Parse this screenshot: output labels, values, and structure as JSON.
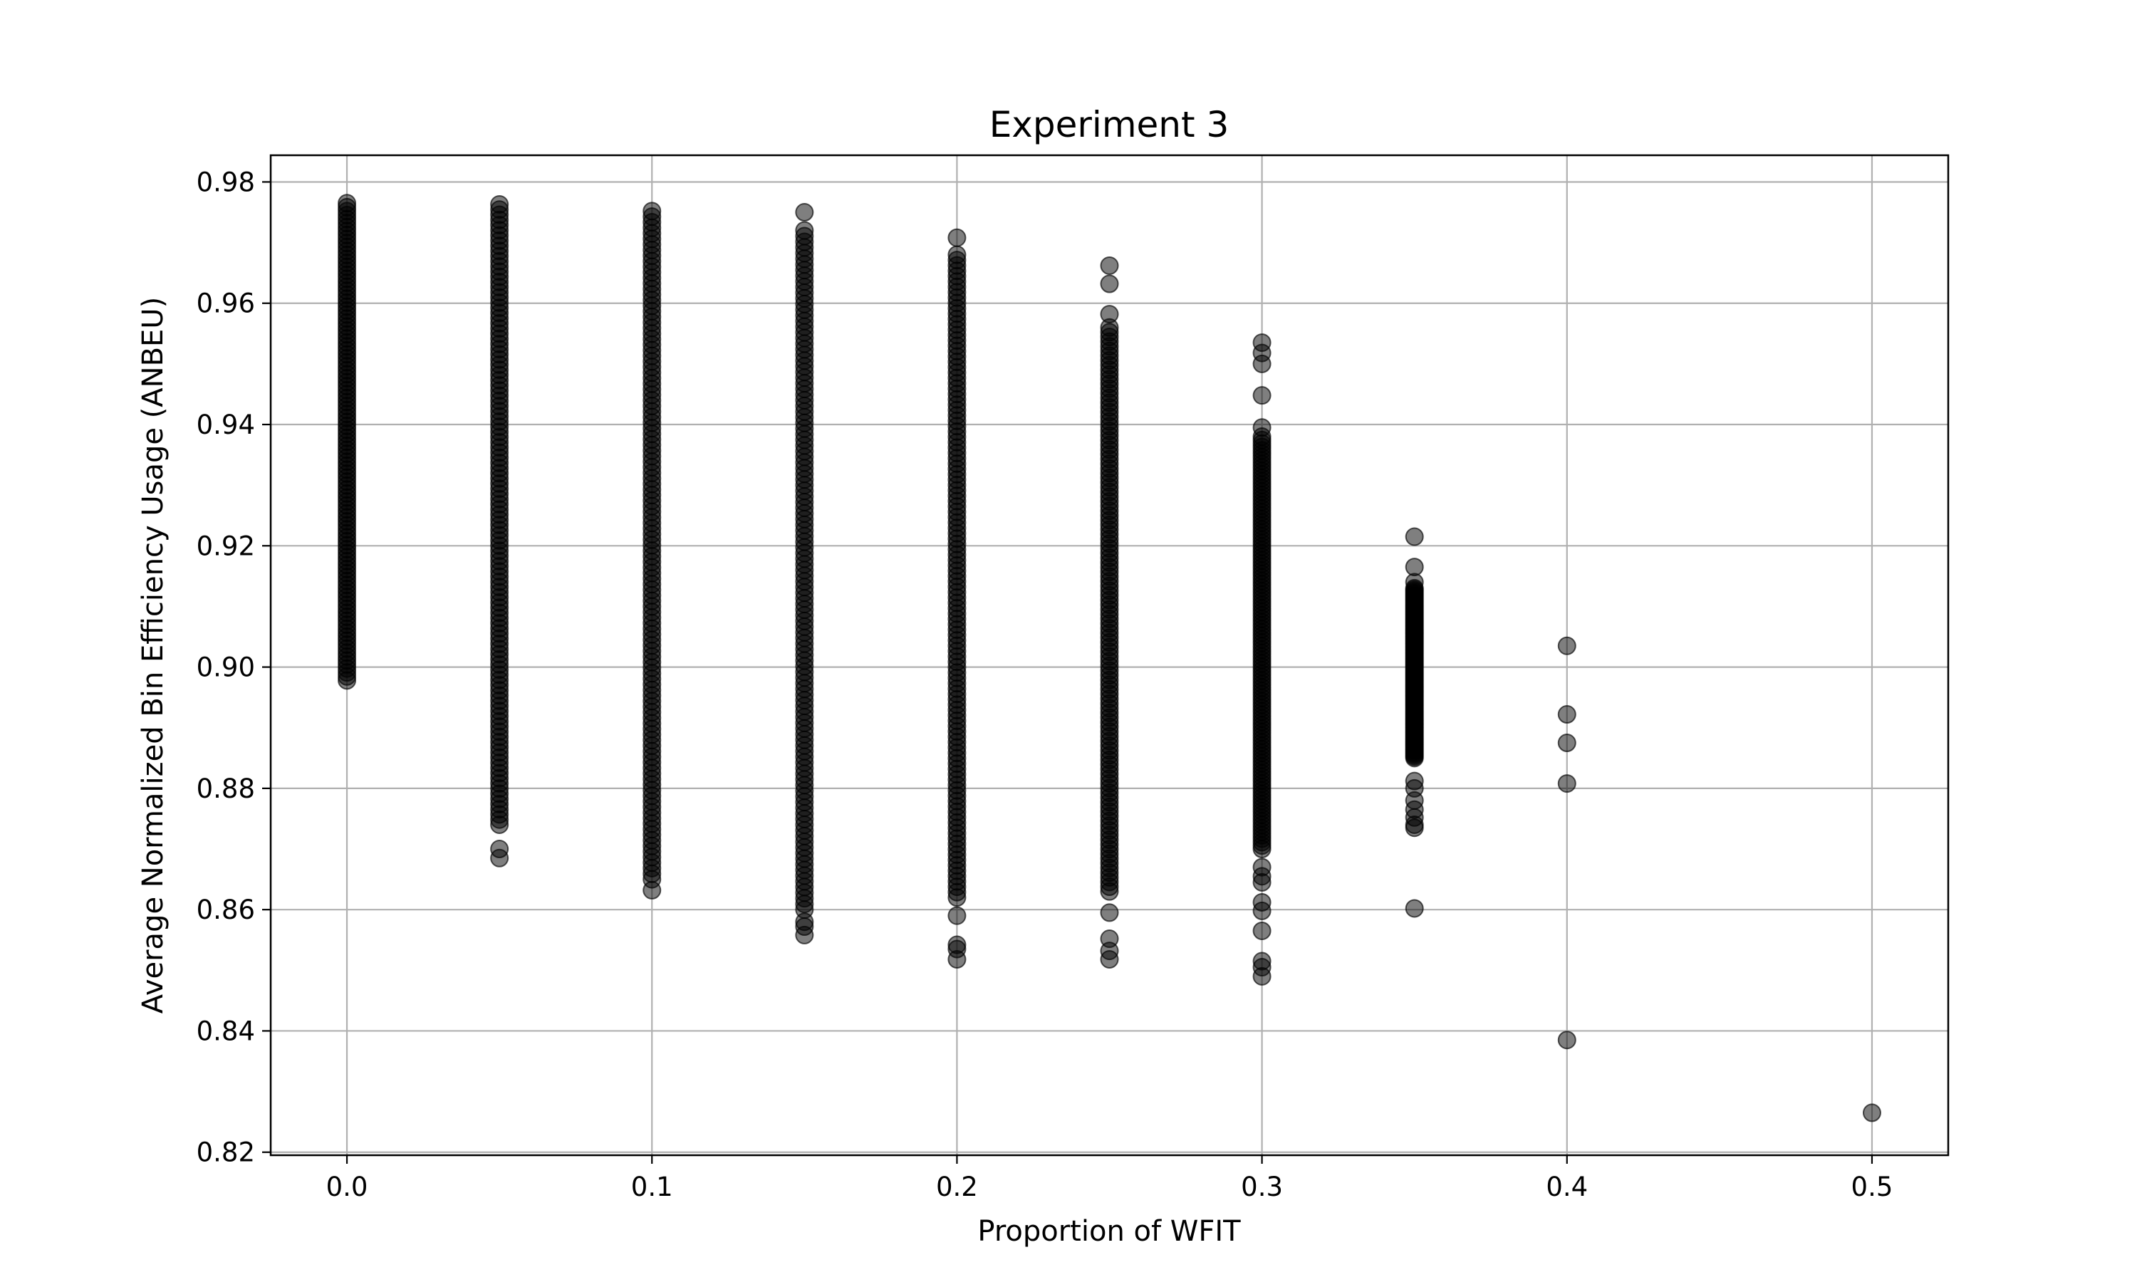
{
  "chart_data": {
    "type": "scatter",
    "title": "Experiment 3",
    "xlabel": "Proportion of WFIT",
    "ylabel": "Average Normalized Bin Efficiency Usage (ANBEU)",
    "xlim": [
      -0.025,
      0.525
    ],
    "ylim": [
      0.8195,
      0.9844
    ],
    "xticks": [
      "0.0",
      "0.1",
      "0.2",
      "0.3",
      "0.4",
      "0.5"
    ],
    "yticks": [
      "0.82",
      "0.84",
      "0.86",
      "0.88",
      "0.90",
      "0.92",
      "0.94",
      "0.96",
      "0.98"
    ],
    "grid": true,
    "marker_color": "#000000",
    "marker_opacity": 0.5,
    "groups": [
      {
        "x": 0.0,
        "range": [
          0.8978,
          0.9765
        ],
        "outliers": []
      },
      {
        "x": 0.05,
        "range": [
          0.874,
          0.9763
        ],
        "outliers": [
          0.87,
          0.8685
        ]
      },
      {
        "x": 0.1,
        "range": [
          0.865,
          0.9752
        ],
        "outliers": [
          0.8632
        ]
      },
      {
        "x": 0.15,
        "range": [
          0.86,
          0.972
        ],
        "outliers": [
          0.975,
          0.858,
          0.8572,
          0.8558
        ]
      },
      {
        "x": 0.2,
        "range": [
          0.862,
          0.968
        ],
        "outliers": [
          0.9708,
          0.859,
          0.8542,
          0.8535,
          0.8518
        ]
      },
      {
        "x": 0.25,
        "range": [
          0.863,
          0.956
        ],
        "outliers": [
          0.9662,
          0.9632,
          0.9582,
          0.8595,
          0.8552,
          0.8532,
          0.8518
        ]
      },
      {
        "x": 0.3,
        "range": [
          0.87,
          0.938
        ],
        "outliers": [
          0.9535,
          0.9518,
          0.95,
          0.9448,
          0.9395,
          0.867,
          0.8655,
          0.8645,
          0.8612,
          0.8598,
          0.8565,
          0.8515,
          0.8505,
          0.849
        ]
      },
      {
        "x": 0.35,
        "range": [
          0.885,
          0.913
        ],
        "outliers": [
          0.9215,
          0.9165,
          0.914,
          0.8812,
          0.88,
          0.878,
          0.8765,
          0.8752,
          0.874,
          0.8735,
          0.8602
        ]
      },
      {
        "x": 0.4,
        "range": null,
        "outliers": [
          0.9035,
          0.8922,
          0.8875,
          0.8808,
          0.8385
        ]
      },
      {
        "x": 0.5,
        "range": null,
        "outliers": [
          0.8265
        ]
      }
    ]
  }
}
